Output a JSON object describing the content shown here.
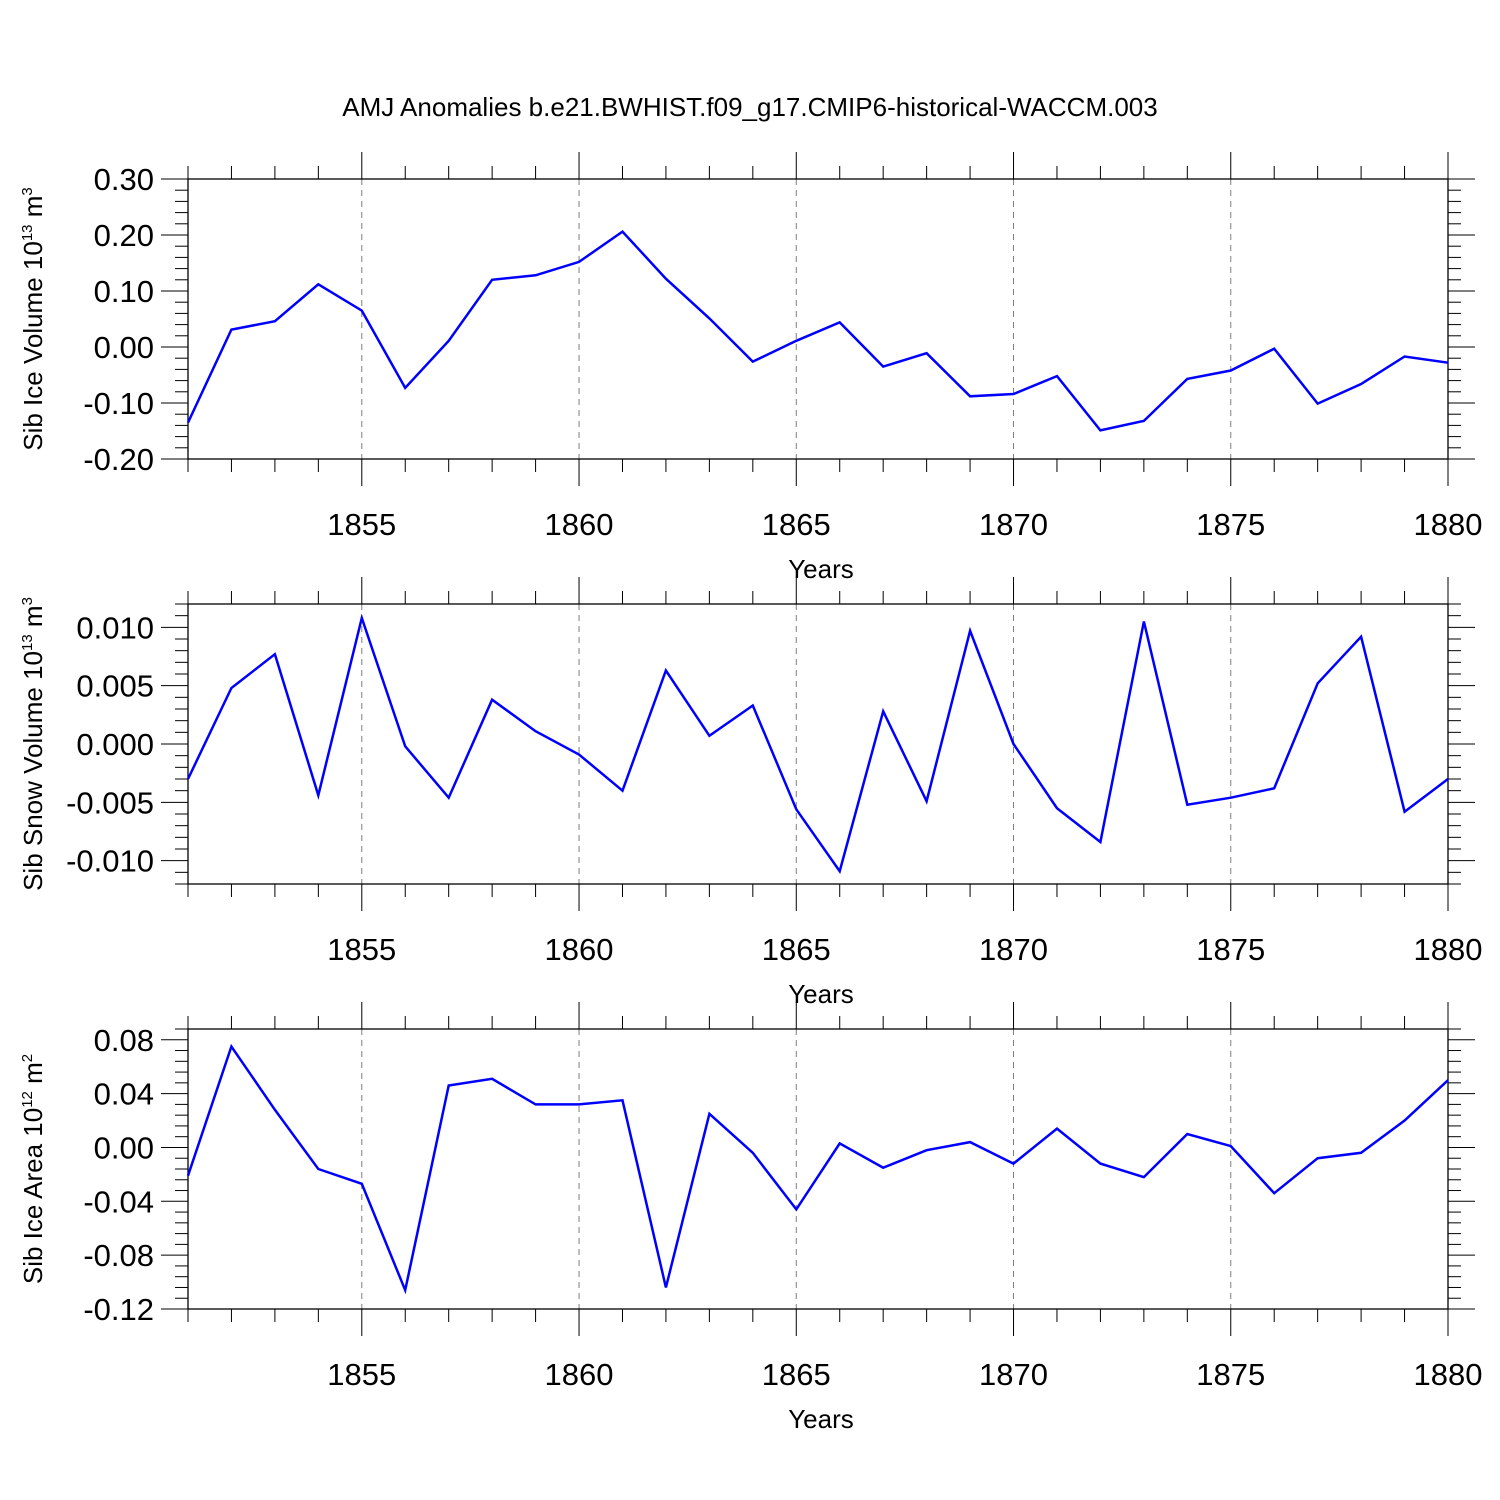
{
  "title": "AMJ Anomalies b.e21.BWHIST.f09_g17.CMIP6-historical-WACCM.003",
  "colors": {
    "series": "#0000ff",
    "axis": "#000000",
    "grid": "#7f7f7f"
  },
  "chart_data": [
    {
      "type": "line",
      "title": "AMJ Anomalies b.e21.BWHIST.f09_g17.CMIP6-historical-WACCM.003",
      "xlabel": "Years",
      "ylabel": {
        "text": "Sib Ice Volume 10",
        "exp1": "13",
        "unit": " m",
        "exp2": "3"
      },
      "xlim": [
        1851,
        1880
      ],
      "ylim": [
        -0.2,
        0.3
      ],
      "grid": "vertical dashed at major x ticks",
      "x_ticks": [
        1855,
        1860,
        1865,
        1870,
        1875,
        1880
      ],
      "y_ticks": [
        -0.2,
        -0.1,
        0.0,
        0.1,
        0.2,
        0.3
      ],
      "y_tick_labels": [
        "-0.20",
        "-0.10",
        "0.00",
        "0.10",
        "0.20",
        "0.30"
      ],
      "x": [
        1851,
        1852,
        1853,
        1854,
        1855,
        1856,
        1857,
        1858,
        1859,
        1860,
        1861,
        1862,
        1863,
        1864,
        1865,
        1866,
        1867,
        1868,
        1869,
        1870,
        1871,
        1872,
        1873,
        1874,
        1875,
        1876,
        1877,
        1878,
        1879,
        1880
      ],
      "values": [
        -0.135,
        0.031,
        0.046,
        0.112,
        0.065,
        -0.073,
        0.011,
        0.12,
        0.128,
        0.152,
        0.206,
        0.122,
        0.051,
        -0.026,
        0.011,
        0.044,
        -0.035,
        -0.011,
        -0.088,
        -0.084,
        -0.052,
        -0.149,
        -0.132,
        -0.057,
        -0.042,
        -0.003,
        -0.101,
        -0.066,
        -0.017,
        -0.028
      ]
    },
    {
      "type": "line",
      "xlabel": "Years",
      "ylabel": {
        "text": "Sib Snow Volume 10",
        "exp1": "13",
        "unit": " m",
        "exp2": "3"
      },
      "xlim": [
        1851,
        1880
      ],
      "ylim": [
        -0.012,
        0.012
      ],
      "grid": "vertical dashed at major x ticks",
      "x_ticks": [
        1855,
        1860,
        1865,
        1870,
        1875,
        1880
      ],
      "y_ticks": [
        -0.01,
        -0.005,
        0.0,
        0.005,
        0.01
      ],
      "y_tick_labels": [
        "-0.010",
        "-0.005",
        "0.000",
        "0.005",
        "0.010"
      ],
      "x": [
        1851,
        1852,
        1853,
        1854,
        1855,
        1856,
        1857,
        1858,
        1859,
        1860,
        1861,
        1862,
        1863,
        1864,
        1865,
        1866,
        1867,
        1868,
        1869,
        1870,
        1871,
        1872,
        1873,
        1874,
        1875,
        1876,
        1877,
        1878,
        1879,
        1880
      ],
      "values": [
        -0.003,
        0.0048,
        0.0077,
        -0.0044,
        0.0108,
        -0.0002,
        -0.0046,
        0.0038,
        0.0011,
        -0.0009,
        -0.004,
        0.0063,
        0.0007,
        0.0033,
        -0.0056,
        -0.0109,
        0.0028,
        -0.0049,
        0.0097,
        0.0,
        -0.0055,
        -0.0084,
        0.0105,
        -0.0052,
        -0.0046,
        -0.0038,
        0.0052,
        0.0092,
        -0.0058,
        -0.003
      ]
    },
    {
      "type": "line",
      "xlabel": "Years",
      "ylabel": {
        "text": "Sib Ice Area 10",
        "exp1": "12",
        "unit": " m",
        "exp2": "2"
      },
      "xlim": [
        1851,
        1880
      ],
      "ylim": [
        -0.12,
        0.088
      ],
      "grid": "vertical dashed at major x ticks",
      "x_ticks": [
        1855,
        1860,
        1865,
        1870,
        1875,
        1880
      ],
      "y_ticks": [
        -0.12,
        -0.08,
        -0.04,
        0.0,
        0.04,
        0.08
      ],
      "y_tick_labels": [
        "-0.12",
        "-0.08",
        "-0.04",
        "0.00",
        "0.04",
        "0.08"
      ],
      "x": [
        1851,
        1852,
        1853,
        1854,
        1855,
        1856,
        1857,
        1858,
        1859,
        1860,
        1861,
        1862,
        1863,
        1864,
        1865,
        1866,
        1867,
        1868,
        1869,
        1870,
        1871,
        1872,
        1873,
        1874,
        1875,
        1876,
        1877,
        1878,
        1879,
        1880
      ],
      "values": [
        -0.021,
        0.075,
        0.028,
        -0.016,
        -0.027,
        -0.106,
        0.046,
        0.051,
        0.032,
        0.032,
        0.035,
        -0.104,
        0.025,
        -0.004,
        -0.046,
        0.003,
        -0.015,
        -0.002,
        0.004,
        -0.012,
        0.014,
        -0.012,
        -0.022,
        0.01,
        0.001,
        -0.034,
        -0.008,
        -0.004,
        0.02,
        0.05
      ]
    }
  ]
}
